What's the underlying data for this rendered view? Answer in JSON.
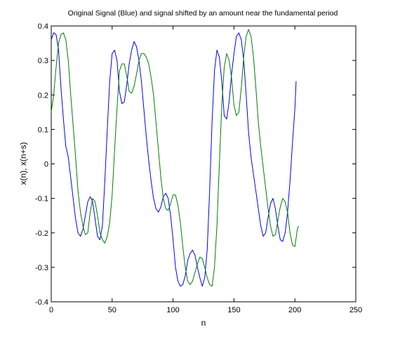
{
  "chart_data": {
    "type": "line",
    "title": "Original Signal (Blue) and signal shifted by an amount near the fundamental period",
    "xlabel": "n",
    "ylabel": "x(n), x(n+s)",
    "xlim": [
      0,
      250
    ],
    "ylim": [
      -0.4,
      0.4
    ],
    "xticks": [
      0,
      50,
      100,
      150,
      200,
      250
    ],
    "xtick_labels": [
      "0",
      "50",
      "100",
      "150",
      "200",
      "250"
    ],
    "yticks": [
      -0.4,
      -0.3,
      -0.2,
      -0.1,
      0,
      0.1,
      0.2,
      0.3,
      0.4
    ],
    "ytick_labels": [
      "-0.4",
      "-0.3",
      "-0.2",
      "-0.1",
      "0",
      "0.1",
      "0.2",
      "0.3",
      "0.4"
    ],
    "grid": false,
    "series": [
      {
        "color": "#0000ff",
        "points": [
          [
            0,
            0.36
          ],
          [
            2,
            0.38
          ],
          [
            4,
            0.375
          ],
          [
            6,
            0.33
          ],
          [
            8,
            0.22
          ],
          [
            10,
            0.13
          ],
          [
            12,
            0.05
          ],
          [
            14,
            0.02
          ],
          [
            16,
            -0.04
          ],
          [
            18,
            -0.1
          ],
          [
            20,
            -0.16
          ],
          [
            22,
            -0.2
          ],
          [
            24,
            -0.21
          ],
          [
            26,
            -0.19
          ],
          [
            28,
            -0.15
          ],
          [
            30,
            -0.11
          ],
          [
            32,
            -0.095
          ],
          [
            34,
            -0.11
          ],
          [
            36,
            -0.16
          ],
          [
            38,
            -0.21
          ],
          [
            40,
            -0.22
          ],
          [
            42,
            -0.18
          ],
          [
            44,
            -0.05
          ],
          [
            46,
            0.1
          ],
          [
            48,
            0.24
          ],
          [
            50,
            0.32
          ],
          [
            52,
            0.33
          ],
          [
            54,
            0.3
          ],
          [
            56,
            0.21
          ],
          [
            58,
            0.175
          ],
          [
            60,
            0.18
          ],
          [
            62,
            0.23
          ],
          [
            64,
            0.29
          ],
          [
            66,
            0.33
          ],
          [
            68,
            0.355
          ],
          [
            70,
            0.34
          ],
          [
            72,
            0.3
          ],
          [
            74,
            0.24
          ],
          [
            76,
            0.16
          ],
          [
            78,
            0.08
          ],
          [
            80,
            0.01
          ],
          [
            82,
            -0.05
          ],
          [
            84,
            -0.1
          ],
          [
            86,
            -0.13
          ],
          [
            88,
            -0.14
          ],
          [
            90,
            -0.125
          ],
          [
            92,
            -0.095
          ],
          [
            94,
            -0.085
          ],
          [
            96,
            -0.1
          ],
          [
            98,
            -0.15
          ],
          [
            100,
            -0.22
          ],
          [
            102,
            -0.3
          ],
          [
            104,
            -0.34
          ],
          [
            106,
            -0.355
          ],
          [
            108,
            -0.35
          ],
          [
            110,
            -0.325
          ],
          [
            112,
            -0.28
          ],
          [
            114,
            -0.26
          ],
          [
            116,
            -0.25
          ],
          [
            118,
            -0.265
          ],
          [
            120,
            -0.3
          ],
          [
            122,
            -0.33
          ],
          [
            124,
            -0.355
          ],
          [
            126,
            -0.33
          ],
          [
            128,
            -0.25
          ],
          [
            130,
            -0.08
          ],
          [
            132,
            0.12
          ],
          [
            134,
            0.27
          ],
          [
            136,
            0.33
          ],
          [
            138,
            0.31
          ],
          [
            140,
            0.24
          ],
          [
            142,
            0.14
          ],
          [
            144,
            0.13
          ],
          [
            146,
            0.18
          ],
          [
            148,
            0.26
          ],
          [
            150,
            0.32
          ],
          [
            152,
            0.37
          ],
          [
            154,
            0.38
          ],
          [
            156,
            0.36
          ],
          [
            158,
            0.3
          ],
          [
            160,
            0.2
          ],
          [
            162,
            0.09
          ],
          [
            164,
            0.02
          ],
          [
            166,
            -0.03
          ],
          [
            168,
            -0.08
          ],
          [
            170,
            -0.13
          ],
          [
            172,
            -0.18
          ],
          [
            174,
            -0.21
          ],
          [
            176,
            -0.2
          ],
          [
            178,
            -0.155
          ],
          [
            180,
            -0.115
          ],
          [
            182,
            -0.1
          ],
          [
            184,
            -0.13
          ],
          [
            186,
            -0.18
          ],
          [
            188,
            -0.22
          ],
          [
            190,
            -0.225
          ],
          [
            192,
            -0.2
          ],
          [
            194,
            -0.14
          ],
          [
            196,
            -0.05
          ],
          [
            198,
            0.06
          ],
          [
            200,
            0.16
          ],
          [
            201,
            0.24
          ]
        ]
      },
      {
        "color": "#007f00",
        "points": [
          [
            0,
            0.15
          ],
          [
            2,
            0.2
          ],
          [
            4,
            0.28
          ],
          [
            6,
            0.35
          ],
          [
            8,
            0.375
          ],
          [
            10,
            0.38
          ],
          [
            12,
            0.36
          ],
          [
            14,
            0.3
          ],
          [
            16,
            0.2
          ],
          [
            18,
            0.11
          ],
          [
            20,
            0.02
          ],
          [
            22,
            -0.08
          ],
          [
            24,
            -0.14
          ],
          [
            26,
            -0.18
          ],
          [
            28,
            -0.205
          ],
          [
            30,
            -0.2
          ],
          [
            32,
            -0.14
          ],
          [
            34,
            -0.1
          ],
          [
            36,
            -0.11
          ],
          [
            38,
            -0.15
          ],
          [
            40,
            -0.2
          ],
          [
            42,
            -0.22
          ],
          [
            44,
            -0.23
          ],
          [
            46,
            -0.21
          ],
          [
            48,
            -0.17
          ],
          [
            50,
            -0.09
          ],
          [
            52,
            0.04
          ],
          [
            54,
            0.16
          ],
          [
            56,
            0.27
          ],
          [
            58,
            0.29
          ],
          [
            60,
            0.29
          ],
          [
            62,
            0.255
          ],
          [
            64,
            0.21
          ],
          [
            66,
            0.205
          ],
          [
            68,
            0.225
          ],
          [
            70,
            0.26
          ],
          [
            72,
            0.3
          ],
          [
            74,
            0.32
          ],
          [
            76,
            0.32
          ],
          [
            78,
            0.31
          ],
          [
            80,
            0.29
          ],
          [
            82,
            0.25
          ],
          [
            84,
            0.2
          ],
          [
            86,
            0.12
          ],
          [
            88,
            0.04
          ],
          [
            90,
            -0.04
          ],
          [
            92,
            -0.1
          ],
          [
            94,
            -0.13
          ],
          [
            96,
            -0.135
          ],
          [
            98,
            -0.115
          ],
          [
            100,
            -0.09
          ],
          [
            102,
            -0.09
          ],
          [
            104,
            -0.12
          ],
          [
            106,
            -0.17
          ],
          [
            108,
            -0.24
          ],
          [
            110,
            -0.3
          ],
          [
            112,
            -0.34
          ],
          [
            114,
            -0.35
          ],
          [
            116,
            -0.34
          ],
          [
            118,
            -0.315
          ],
          [
            120,
            -0.29
          ],
          [
            122,
            -0.27
          ],
          [
            124,
            -0.275
          ],
          [
            126,
            -0.3
          ],
          [
            128,
            -0.33
          ],
          [
            130,
            -0.35
          ],
          [
            132,
            -0.355
          ],
          [
            134,
            -0.3
          ],
          [
            136,
            -0.18
          ],
          [
            138,
            0.0
          ],
          [
            140,
            0.17
          ],
          [
            142,
            0.28
          ],
          [
            144,
            0.32
          ],
          [
            146,
            0.3
          ],
          [
            148,
            0.25
          ],
          [
            150,
            0.17
          ],
          [
            152,
            0.14
          ],
          [
            154,
            0.15
          ],
          [
            156,
            0.22
          ],
          [
            158,
            0.31
          ],
          [
            160,
            0.37
          ],
          [
            162,
            0.39
          ],
          [
            164,
            0.37
          ],
          [
            166,
            0.31
          ],
          [
            168,
            0.22
          ],
          [
            170,
            0.12
          ],
          [
            172,
            0.05
          ],
          [
            174,
            -0.01
          ],
          [
            176,
            -0.07
          ],
          [
            178,
            -0.13
          ],
          [
            180,
            -0.18
          ],
          [
            182,
            -0.21
          ],
          [
            184,
            -0.205
          ],
          [
            186,
            -0.165
          ],
          [
            188,
            -0.125
          ],
          [
            190,
            -0.1
          ],
          [
            192,
            -0.11
          ],
          [
            194,
            -0.14
          ],
          [
            196,
            -0.2
          ],
          [
            198,
            -0.235
          ],
          [
            200,
            -0.24
          ],
          [
            202,
            -0.19
          ],
          [
            203,
            -0.18
          ]
        ]
      }
    ]
  }
}
